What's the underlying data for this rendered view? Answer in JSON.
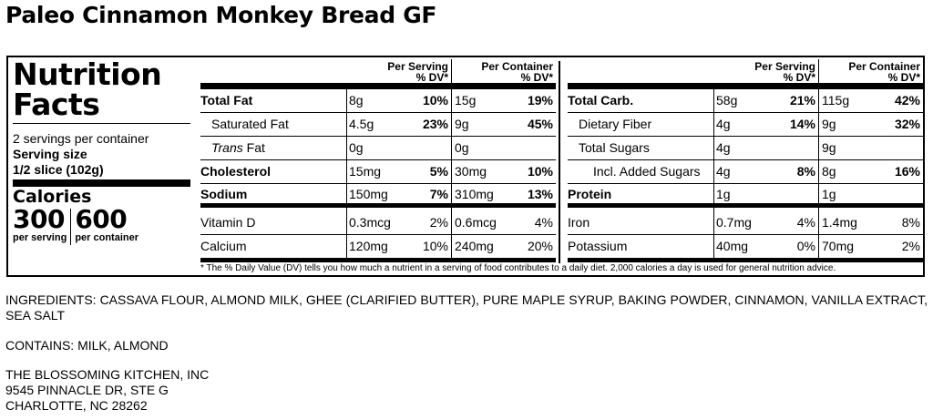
{
  "product_title": "Paleo Cinnamon Monkey Bread GF",
  "panel": {
    "title_line1": "Nutrition",
    "title_line2": "Facts",
    "servings_per_container": "2 servings per container",
    "serving_size_label": "Serving size",
    "serving_size_value": "1/2 slice (102g)",
    "calories_label": "Calories",
    "calories_per_serving": "300",
    "calories_per_container": "600",
    "per_serving_label": "per serving",
    "per_container_label": "per container"
  },
  "headers": {
    "per_serving_line1": "Per Serving",
    "per_serving_line2": "% DV*",
    "per_container_line1": "Per Container",
    "per_container_line2": "% DV*"
  },
  "left_rows": [
    {
      "name": "Total Fat",
      "amt1": "8g",
      "dv1": "10%",
      "amt2": "15g",
      "dv2": "19%"
    },
    {
      "name": "Saturated Fat",
      "amt1": "4.5g",
      "dv1": "23%",
      "amt2": "9g",
      "dv2": "45%"
    },
    {
      "name_italic": "Trans",
      "name_rest": " Fat",
      "amt1": "0g",
      "dv1": "",
      "amt2": "0g",
      "dv2": ""
    },
    {
      "name": "Cholesterol",
      "amt1": "15mg",
      "dv1": "5%",
      "amt2": "30mg",
      "dv2": "10%"
    },
    {
      "name": "Sodium",
      "amt1": "150mg",
      "dv1": "7%",
      "amt2": "310mg",
      "dv2": "13%"
    },
    {
      "name": "Vitamin D",
      "amt1": "0.3mcg",
      "dv1": "2%",
      "amt2": "0.6mcg",
      "dv2": "4%"
    },
    {
      "name": "Calcium",
      "amt1": "120mg",
      "dv1": "10%",
      "amt2": "240mg",
      "dv2": "20%"
    }
  ],
  "right_rows": [
    {
      "name": "Total Carb.",
      "amt1": "58g",
      "dv1": "21%",
      "amt2": "115g",
      "dv2": "42%"
    },
    {
      "name": "Dietary Fiber",
      "amt1": "4g",
      "dv1": "14%",
      "amt2": "9g",
      "dv2": "32%"
    },
    {
      "name": "Total Sugars",
      "amt1": "4g",
      "dv1": "",
      "amt2": "9g",
      "dv2": ""
    },
    {
      "name": "Incl. Added Sugars",
      "amt1": "4g",
      "dv1": "8%",
      "amt2": "8g",
      "dv2": "16%"
    },
    {
      "name": "Protein",
      "amt1": "1g",
      "dv1": "",
      "amt2": "1g",
      "dv2": ""
    },
    {
      "name": "Iron",
      "amt1": "0.7mg",
      "dv1": "4%",
      "amt2": "1.4mg",
      "dv2": "8%"
    },
    {
      "name": "Potassium",
      "amt1": "40mg",
      "dv1": "0%",
      "amt2": "70mg",
      "dv2": "2%"
    }
  ],
  "footnote": "* The % Daily Value (DV) tells you how much a nutrient in a serving of food contributes to a daily diet. 2,000 calories a day is used for general nutrition advice.",
  "ingredients": "INGREDIENTS: CASSAVA FLOUR, ALMOND MILK, GHEE (CLARIFIED BUTTER), PURE MAPLE SYRUP, BAKING POWDER, CINNAMON, VANILLA EXTRACT, SEA SALT",
  "contains": "CONTAINS: MILK, ALMOND",
  "address": {
    "line1": "THE BLOSSOMING KITCHEN, INC",
    "line2": "9545 PINNACLE DR, STE G",
    "line3": "CHARLOTTE, NC 28262"
  }
}
